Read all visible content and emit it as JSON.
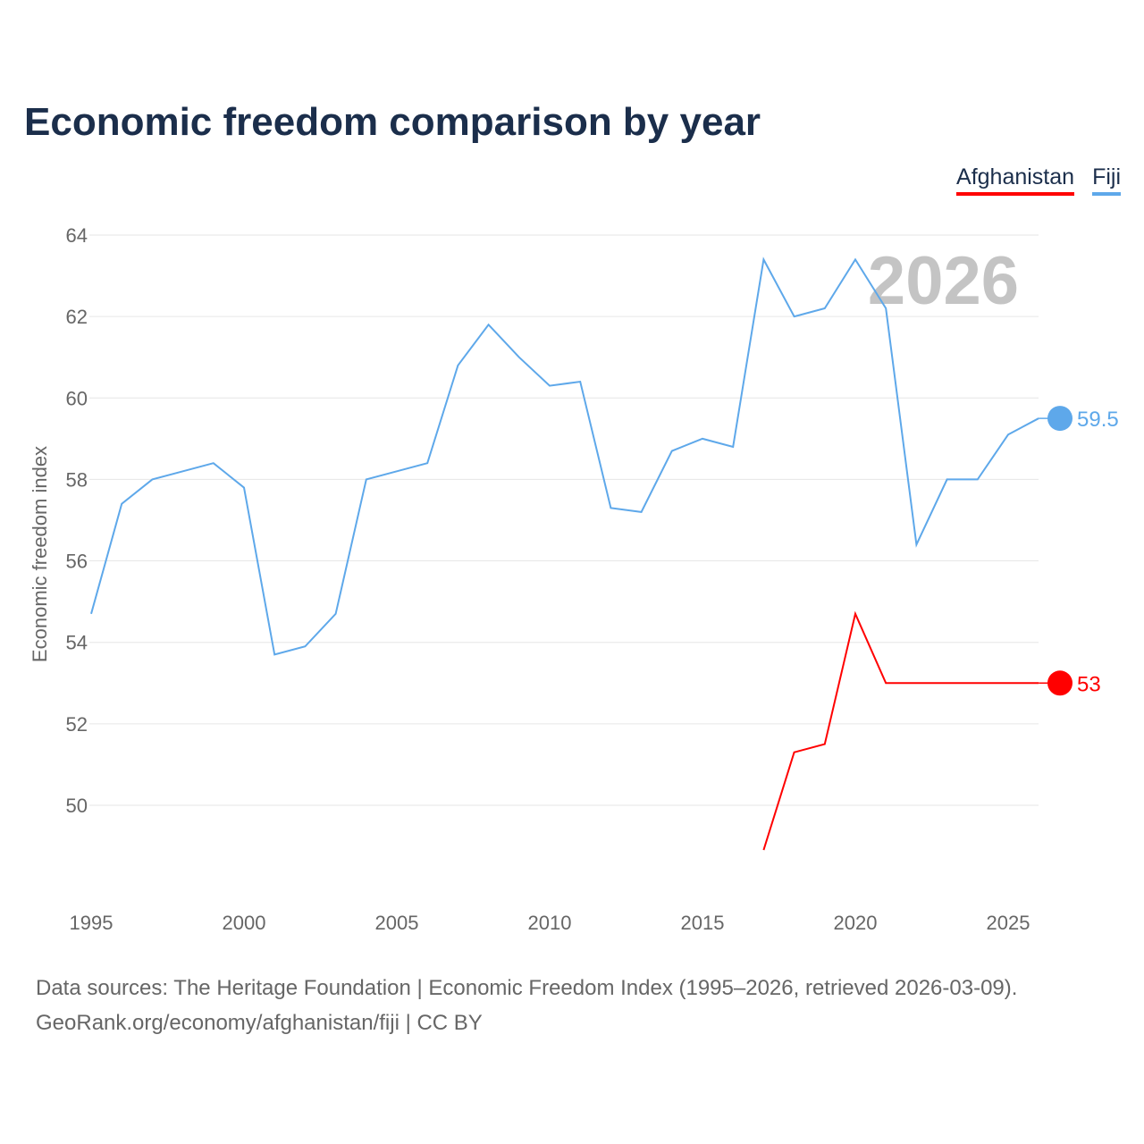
{
  "chart_data": {
    "type": "line",
    "title": "Economic freedom comparison by year",
    "ylabel": "Economic freedom index",
    "xlabel": "",
    "ylim": [
      48,
      64
    ],
    "xlim": [
      1995,
      2026
    ],
    "yticks": [
      50,
      52,
      54,
      56,
      58,
      60,
      62,
      64
    ],
    "xticks": [
      1995,
      2000,
      2005,
      2010,
      2015,
      2020,
      2025
    ],
    "grid": true,
    "legend_placement": "top-right",
    "watermark_year": "2026",
    "series": [
      {
        "name": "Afghanistan",
        "color": "#ff0000",
        "end_label": "53",
        "x": [
          2017,
          2018,
          2019,
          2020,
          2021,
          2022,
          2023,
          2024,
          2025,
          2026
        ],
        "y": [
          48.9,
          51.3,
          51.5,
          54.7,
          53.0,
          53.0,
          53.0,
          53.0,
          53.0,
          53.0
        ]
      },
      {
        "name": "Fiji",
        "color": "#5ea8ea",
        "end_label": "59.5",
        "x": [
          1995,
          1996,
          1997,
          1998,
          1999,
          2000,
          2001,
          2002,
          2003,
          2004,
          2005,
          2006,
          2007,
          2008,
          2009,
          2010,
          2011,
          2012,
          2013,
          2014,
          2015,
          2016,
          2017,
          2018,
          2019,
          2020,
          2021,
          2022,
          2023,
          2024,
          2025,
          2026
        ],
        "y": [
          54.7,
          57.4,
          58.0,
          58.2,
          58.4,
          57.8,
          53.7,
          53.9,
          54.7,
          58.0,
          58.2,
          58.4,
          60.8,
          61.8,
          61.0,
          60.3,
          60.4,
          57.3,
          57.2,
          58.7,
          59.0,
          58.8,
          63.4,
          62.0,
          62.2,
          63.4,
          62.2,
          56.4,
          58.0,
          58.0,
          59.1,
          59.5
        ]
      }
    ]
  },
  "footer": {
    "line1": "Data sources: The Heritage Foundation | Economic Freedom Index (1995–2026, retrieved 2026-03-09).",
    "line2": "GeoRank.org/economy/afghanistan/fiji | CC BY"
  }
}
